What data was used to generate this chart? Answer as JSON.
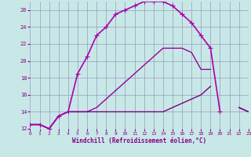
{
  "xlabel": "Windchill (Refroidissement éolien,°C)",
  "background_color": "#c8e8e8",
  "grid_color": "#9999bb",
  "xmin": 0,
  "xmax": 23,
  "ymin": 12,
  "ymax": 27,
  "yticks": [
    12,
    14,
    16,
    18,
    20,
    22,
    24,
    26
  ],
  "xticks": [
    0,
    1,
    2,
    3,
    4,
    5,
    6,
    7,
    8,
    9,
    10,
    11,
    12,
    13,
    14,
    15,
    16,
    17,
    18,
    19,
    20,
    21,
    22,
    23
  ],
  "series": [
    {
      "x": [
        0,
        1,
        2,
        3,
        4,
        5,
        6,
        7,
        8,
        9,
        10,
        11,
        12,
        13,
        14,
        15,
        16,
        17,
        18,
        19,
        20,
        21,
        22,
        23
      ],
      "y": [
        12.5,
        12.5,
        12.0,
        13.5,
        14.0,
        18.5,
        20.5,
        23.0,
        24.0,
        25.5,
        26.0,
        26.5,
        27.0,
        27.0,
        27.0,
        26.5,
        25.5,
        24.5,
        23.0,
        21.5,
        14.0,
        null,
        null,
        null
      ],
      "marker": "+",
      "markersize": 4,
      "linewidth": 1.2,
      "color": "#aa00aa"
    },
    {
      "x": [
        0,
        1,
        2,
        3,
        4,
        5,
        6,
        7,
        8,
        9,
        10,
        11,
        12,
        13,
        14,
        15,
        16,
        17,
        18,
        19,
        20,
        21,
        22,
        23
      ],
      "y": [
        12.5,
        12.5,
        12.0,
        13.5,
        14.0,
        14.0,
        14.0,
        14.5,
        15.5,
        16.5,
        17.5,
        18.5,
        19.5,
        20.5,
        21.5,
        21.5,
        21.5,
        21.0,
        19.0,
        19.0,
        null,
        null,
        14.5,
        14.0
      ],
      "marker": null,
      "linewidth": 1.0,
      "color": "#990099"
    },
    {
      "x": [
        0,
        1,
        2,
        3,
        4,
        5,
        6,
        7,
        8,
        9,
        10,
        11,
        12,
        13,
        14,
        15,
        16,
        17,
        18,
        19,
        20,
        21,
        22,
        23
      ],
      "y": [
        12.5,
        12.5,
        12.0,
        13.5,
        14.0,
        14.0,
        14.0,
        14.0,
        14.0,
        14.0,
        14.0,
        14.0,
        14.0,
        14.0,
        14.0,
        14.5,
        15.0,
        15.5,
        16.0,
        17.0,
        null,
        null,
        14.5,
        14.0
      ],
      "marker": null,
      "linewidth": 1.0,
      "color": "#770077"
    }
  ]
}
